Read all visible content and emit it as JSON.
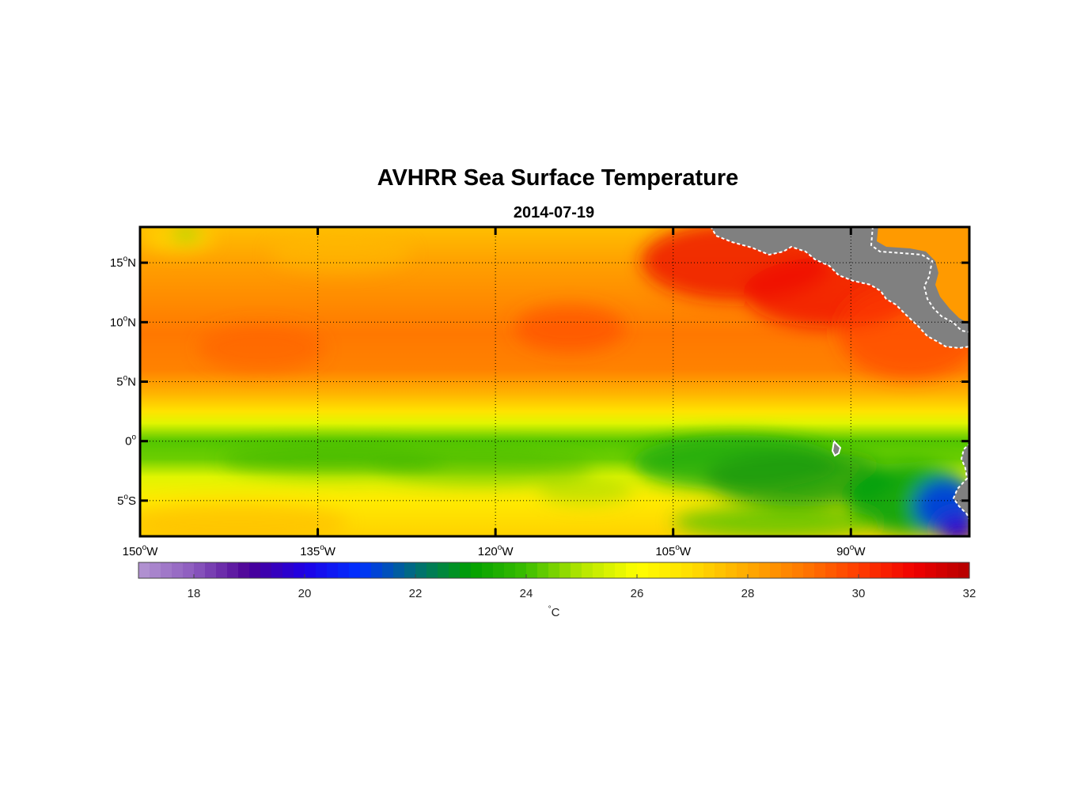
{
  "title": "AVHRR Sea Surface Temperature",
  "subtitle": "2014-07-19",
  "colors": {
    "land": "#808080",
    "coast": "#ffffff",
    "frame": "#000000",
    "grid": "#000000"
  },
  "chart_data": {
    "type": "heatmap",
    "variable": "sea surface temperature",
    "units": "°C",
    "lon_range": [
      -150,
      -80
    ],
    "lat_range": [
      -8,
      18
    ],
    "x_ticks": [
      {
        "deg": "150",
        "hemi": "W",
        "value": -150
      },
      {
        "deg": "135",
        "hemi": "W",
        "value": -135
      },
      {
        "deg": "120",
        "hemi": "W",
        "value": -120
      },
      {
        "deg": "105",
        "hemi": "W",
        "value": -105
      },
      {
        "deg": "90",
        "hemi": "W",
        "value": -90
      }
    ],
    "y_ticks": [
      {
        "deg": "15",
        "hemi": "N",
        "value": 15
      },
      {
        "deg": "10",
        "hemi": "N",
        "value": 10
      },
      {
        "deg": "5",
        "hemi": "N",
        "value": 5
      },
      {
        "deg": "0",
        "hemi": "",
        "value": 0
      },
      {
        "deg": "5",
        "hemi": "S",
        "value": -5
      }
    ],
    "colorbar": {
      "range": [
        17,
        32
      ],
      "ticks": [
        18,
        20,
        22,
        24,
        26,
        28,
        30,
        32
      ],
      "label_sup": "°",
      "label": "C",
      "stops": [
        {
          "v": 17,
          "c": "#b496d2"
        },
        {
          "v": 18,
          "c": "#8c5abe"
        },
        {
          "v": 19,
          "c": "#4b0096"
        },
        {
          "v": 20,
          "c": "#1e00e6"
        },
        {
          "v": 21,
          "c": "#0032ff"
        },
        {
          "v": 22,
          "c": "#006e78"
        },
        {
          "v": 23,
          "c": "#00a000"
        },
        {
          "v": 24,
          "c": "#3cbe00"
        },
        {
          "v": 25,
          "c": "#b4e600"
        },
        {
          "v": 26,
          "c": "#ffff00"
        },
        {
          "v": 27,
          "c": "#ffdc00"
        },
        {
          "v": 28,
          "c": "#ffaa00"
        },
        {
          "v": 29,
          "c": "#ff7800"
        },
        {
          "v": 30,
          "c": "#ff3c00"
        },
        {
          "v": 31,
          "c": "#f00000"
        },
        {
          "v": 32,
          "c": "#b40000"
        }
      ]
    },
    "sst_profile_by_lat": [
      {
        "lat": 18,
        "sst": 27.6
      },
      {
        "lat": 15,
        "sst": 28.2
      },
      {
        "lat": 12,
        "sst": 28.6
      },
      {
        "lat": 9,
        "sst": 29.0
      },
      {
        "lat": 6,
        "sst": 28.8
      },
      {
        "lat": 4,
        "sst": 27.8
      },
      {
        "lat": 2.5,
        "sst": 26.8
      },
      {
        "lat": 1.5,
        "sst": 25.6
      },
      {
        "lat": 0,
        "sst": 24.2
      },
      {
        "lat": -1.5,
        "sst": 24.4
      },
      {
        "lat": -3,
        "sst": 25.6
      },
      {
        "lat": -5,
        "sst": 26.6
      },
      {
        "lat": -8,
        "sst": 27.2
      }
    ]
  }
}
